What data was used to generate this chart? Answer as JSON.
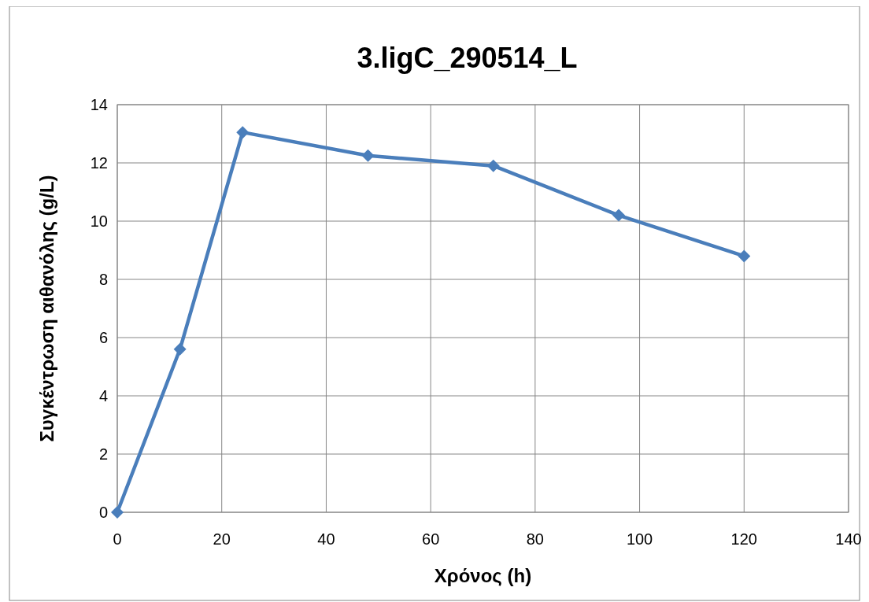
{
  "chart_data": {
    "type": "line",
    "title": "3.ligC_290514_L",
    "xlabel": "Χρόνος (h)",
    "ylabel": "Συγκέντρωση αιθανόλης (g/L)",
    "x": [
      0,
      12,
      24,
      48,
      72,
      96,
      120
    ],
    "series": [
      {
        "color": "#4a7ebb",
        "values": [
          0,
          5.6,
          13.05,
          12.25,
          11.9,
          10.2,
          8.8
        ]
      }
    ],
    "xlim": [
      0,
      140
    ],
    "xticks": [
      0,
      20,
      40,
      60,
      80,
      100,
      120,
      140
    ],
    "ylim": [
      0,
      14
    ],
    "yticks": [
      0,
      2,
      4,
      6,
      8,
      10,
      12,
      14
    ],
    "grid": true,
    "marker": "diamond",
    "line_style": "solid"
  }
}
